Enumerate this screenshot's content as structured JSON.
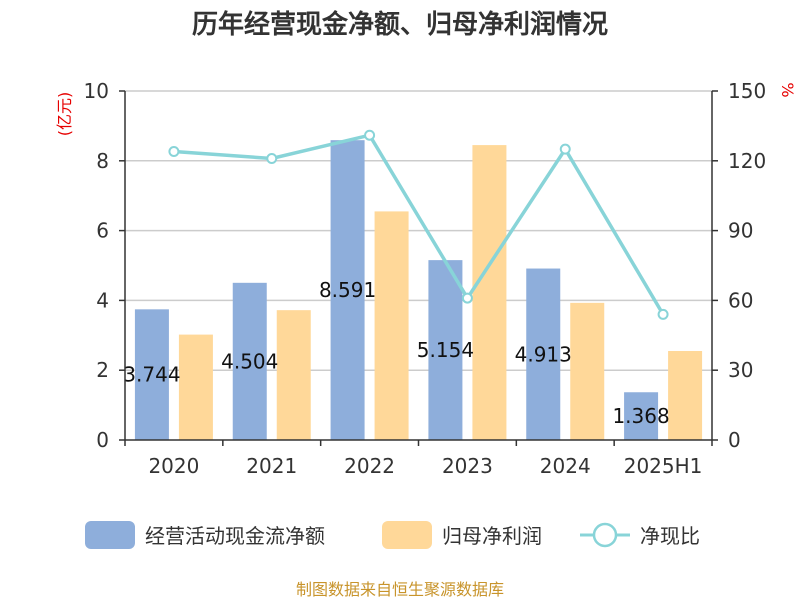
{
  "chart_data": {
    "type": "bar",
    "title": "历年经营现金净额、归母净利润情况",
    "categories": [
      "2020",
      "2021",
      "2022",
      "2023",
      "2024",
      "2025H1"
    ],
    "series": [
      {
        "name": "经营活动现金流净额",
        "type": "bar",
        "axis": "left",
        "values": [
          3.744,
          4.504,
          8.591,
          5.154,
          4.913,
          1.368
        ],
        "color": "#8eaedb"
      },
      {
        "name": "归母净利润",
        "type": "bar",
        "axis": "left",
        "values": [
          3.02,
          3.72,
          6.55,
          8.45,
          3.93,
          2.55
        ],
        "color": "#ffd899"
      },
      {
        "name": "净现比",
        "type": "line",
        "axis": "right",
        "values": [
          124,
          121,
          131,
          61,
          125,
          54
        ],
        "color": "#88d4d8"
      }
    ],
    "data_labels": [
      "3.744",
      "4.504",
      "8.591",
      "5.154",
      "4.913",
      "1.368"
    ],
    "yleft": {
      "unit": "(亿元)",
      "ylim": [
        0,
        10
      ],
      "ticks": [
        "0",
        "2",
        "4",
        "6",
        "8",
        "10"
      ]
    },
    "yright": {
      "unit": "%",
      "ylim": [
        0,
        150
      ],
      "ticks": [
        "0",
        "30",
        "60",
        "90",
        "120",
        "150"
      ]
    },
    "grid": true,
    "legend": "bottom",
    "source": "制图数据来自恒生聚源数据库"
  }
}
